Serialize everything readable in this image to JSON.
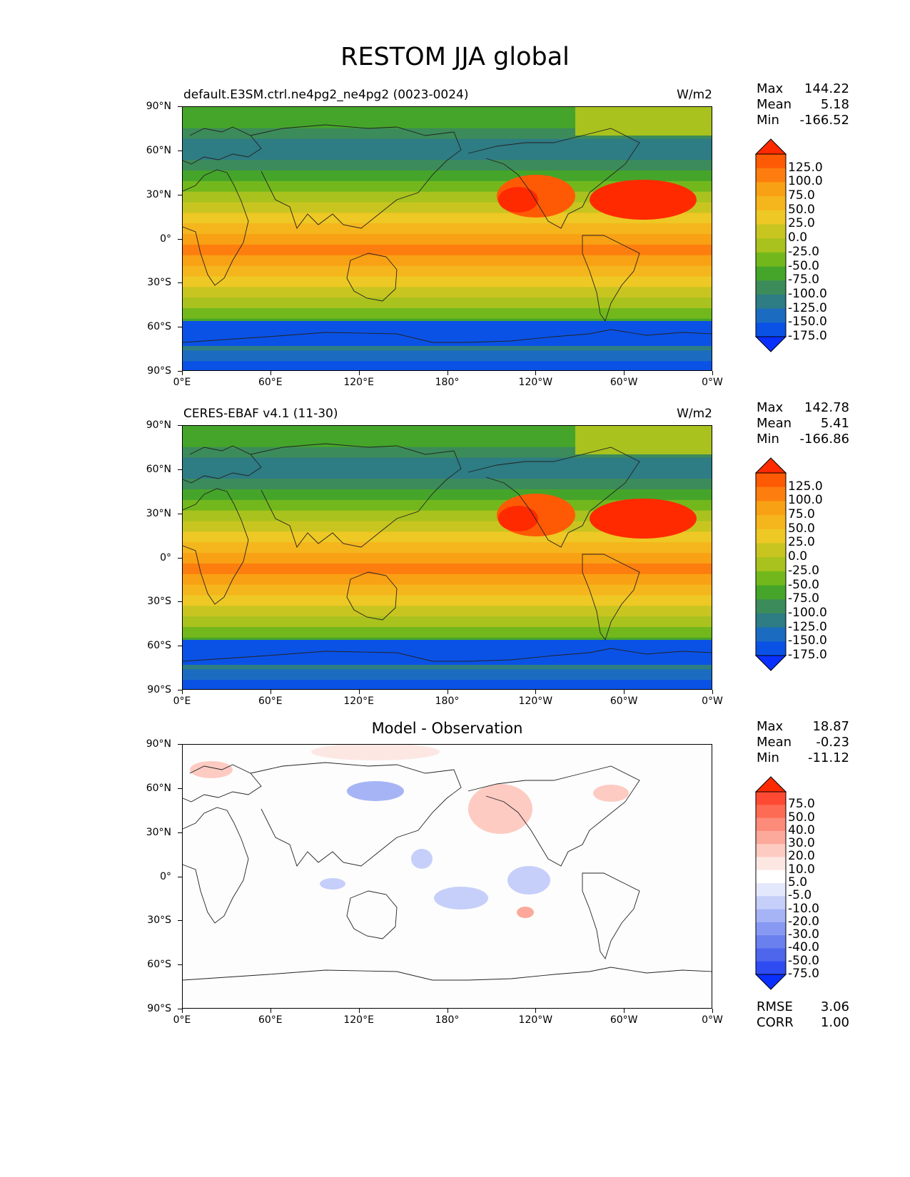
{
  "main_title": "RESTOM JJA global",
  "lat_labels": [
    "90°N",
    "60°N",
    "30°N",
    "0°",
    "30°S",
    "60°S",
    "90°S"
  ],
  "lon_labels": [
    "0°E",
    "60°E",
    "120°E",
    "180°",
    "120°W",
    "60°W",
    "0°W"
  ],
  "panels": [
    {
      "title": "default.E3SM.ctrl.ne4pg2_ne4pg2 (0023-0024)",
      "units": "W/m2",
      "stats": {
        "max_label": "Max",
        "max": "144.22",
        "mean_label": "Mean",
        "mean": "5.18",
        "min_label": "Min",
        "min": "-166.52"
      },
      "colorbar": {
        "ticks": [
          "125.0",
          "100.0",
          "75.0",
          "50.0",
          "25.0",
          "0.0",
          "-25.0",
          "-50.0",
          "-75.0",
          "-100.0",
          "-125.0",
          "-150.0",
          "-175.0"
        ],
        "colors": [
          "#ff2a00",
          "#fe5a05",
          "#fd7e0f",
          "#f9a114",
          "#f5b51d",
          "#eec824",
          "#c8c521",
          "#a9c21d",
          "#72b81c",
          "#45a52a",
          "#3c8b5a",
          "#2e7c84",
          "#1b6cc0",
          "#0a52e6",
          "#0a30ff"
        ]
      }
    },
    {
      "title": "CERES-EBAF v4.1 (11-30)",
      "units": "W/m2",
      "stats": {
        "max_label": "Max",
        "max": "142.78",
        "mean_label": "Mean",
        "mean": "5.41",
        "min_label": "Min",
        "min": "-166.86"
      },
      "colorbar": {
        "ticks": [
          "125.0",
          "100.0",
          "75.0",
          "50.0",
          "25.0",
          "0.0",
          "-25.0",
          "-50.0",
          "-75.0",
          "-100.0",
          "-125.0",
          "-150.0",
          "-175.0"
        ],
        "colors": [
          "#ff2a00",
          "#fe5a05",
          "#fd7e0f",
          "#f9a114",
          "#f5b51d",
          "#eec824",
          "#c8c521",
          "#a9c21d",
          "#72b81c",
          "#45a52a",
          "#3c8b5a",
          "#2e7c84",
          "#1b6cc0",
          "#0a52e6",
          "#0a30ff"
        ]
      }
    },
    {
      "title": "Model - Observation",
      "units": "",
      "stats": {
        "max_label": "Max",
        "max": "18.87",
        "mean_label": "Mean",
        "mean": "-0.23",
        "min_label": "Min",
        "min": "-11.12"
      },
      "colorbar": {
        "ticks": [
          "75.0",
          "50.0",
          "40.0",
          "30.0",
          "20.0",
          "10.0",
          "5.0",
          "-5.0",
          "-10.0",
          "-20.0",
          "-30.0",
          "-40.0",
          "-50.0",
          "-75.0"
        ],
        "colors": [
          "#ff2a00",
          "#fe4a32",
          "#fd6b55",
          "#fc8b7a",
          "#fca99c",
          "#fdcbc2",
          "#fde7e3",
          "#ffffff",
          "#e4e8fc",
          "#c6cffa",
          "#a6b4f6",
          "#8799f2",
          "#6a80ef",
          "#4d66ec",
          "#2f4cf2",
          "#0a30ff"
        ]
      },
      "metrics": {
        "rmse_label": "RMSE",
        "rmse": "3.06",
        "corr_label": "CORR",
        "corr": "1.00"
      }
    }
  ]
}
